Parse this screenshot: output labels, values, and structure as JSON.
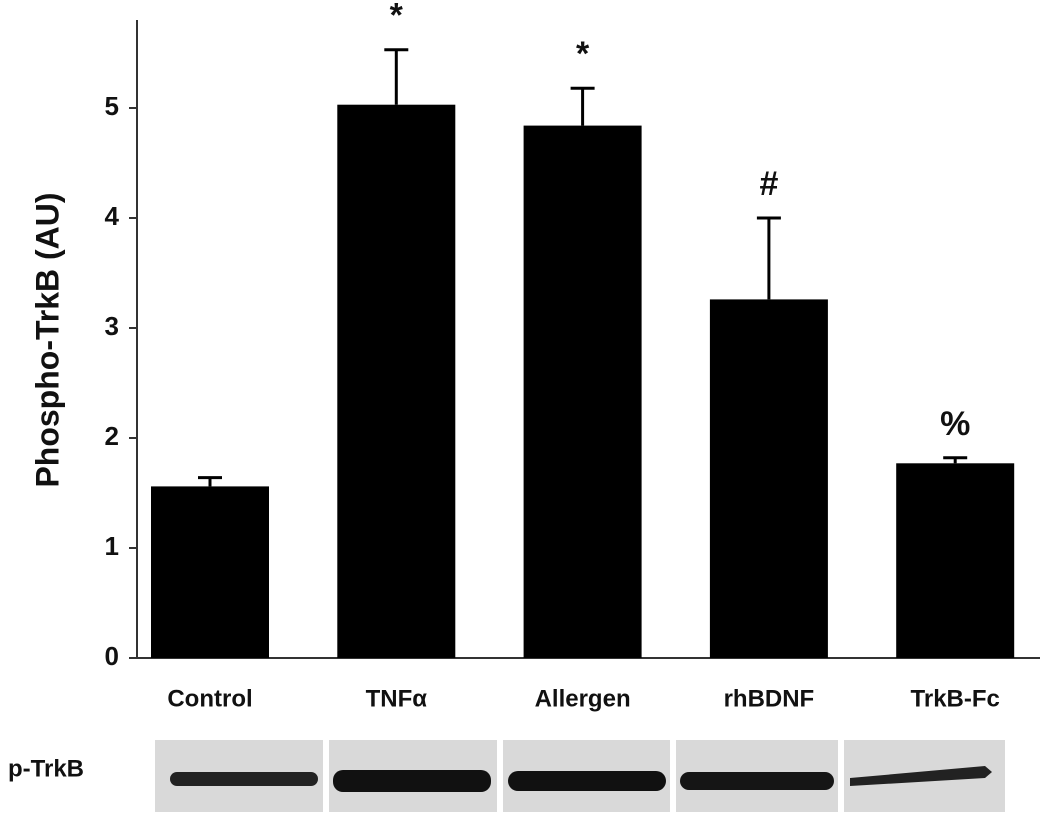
{
  "chart_data": {
    "type": "bar",
    "y_label": "Phospho-TrkB (AU)",
    "blot_label": "p-TrkB",
    "categories": [
      "Control",
      "TNFα",
      "Allergen",
      "rhBDNF",
      "TrkB-Fc"
    ],
    "values": [
      1.56,
      5.03,
      4.84,
      3.26,
      1.77
    ],
    "errors": [
      0.08,
      0.5,
      0.34,
      0.74,
      0.05
    ],
    "annotations": [
      null,
      "*",
      "*",
      "#",
      "%"
    ],
    "color": "#000000",
    "ylim": [
      0,
      5.8
    ],
    "yticks": [
      0,
      1,
      2,
      3,
      4,
      5
    ],
    "grid": false
  }
}
